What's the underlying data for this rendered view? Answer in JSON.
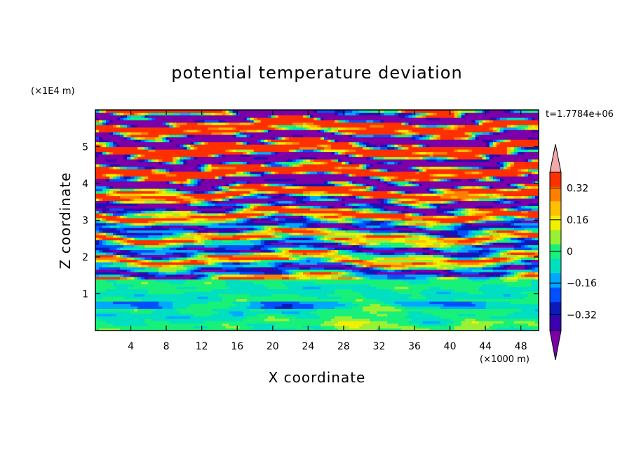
{
  "chart_data": {
    "type": "heatmap",
    "title": "potential temperature deviation",
    "xlabel": "X coordinate",
    "ylabel": "Z coordinate",
    "x_unit": "(×1000 m)",
    "y_unit": "(×1E4 m)",
    "time_label": "t=1.7784e+06",
    "xlim": [
      0,
      50
    ],
    "ylim": [
      0,
      6
    ],
    "x_ticks": [
      4,
      8,
      12,
      16,
      20,
      24,
      28,
      32,
      36,
      40,
      44,
      48
    ],
    "y_ticks": [
      1,
      2,
      3,
      4,
      5
    ],
    "colorbar": {
      "levels": [
        -0.48,
        -0.4,
        -0.32,
        -0.24,
        -0.16,
        -0.08,
        0,
        0.08,
        0.16,
        0.24,
        0.32,
        0.4,
        0.48
      ],
      "colors": [
        "#7b00a8",
        "#3d00b0",
        "#0c1ab8",
        "#0050ff",
        "#00a8ff",
        "#00e0c0",
        "#19f07a",
        "#9af035",
        "#f0f000",
        "#ffc000",
        "#ff8000",
        "#ff3000",
        "#f0a8a8"
      ],
      "tick_labels": [
        "0.32",
        "0.16",
        "0",
        "−0.16",
        "−0.32"
      ],
      "tick_values": [
        0.32,
        0.16,
        0,
        -0.16,
        -0.32
      ],
      "extend": "both"
    }
  }
}
